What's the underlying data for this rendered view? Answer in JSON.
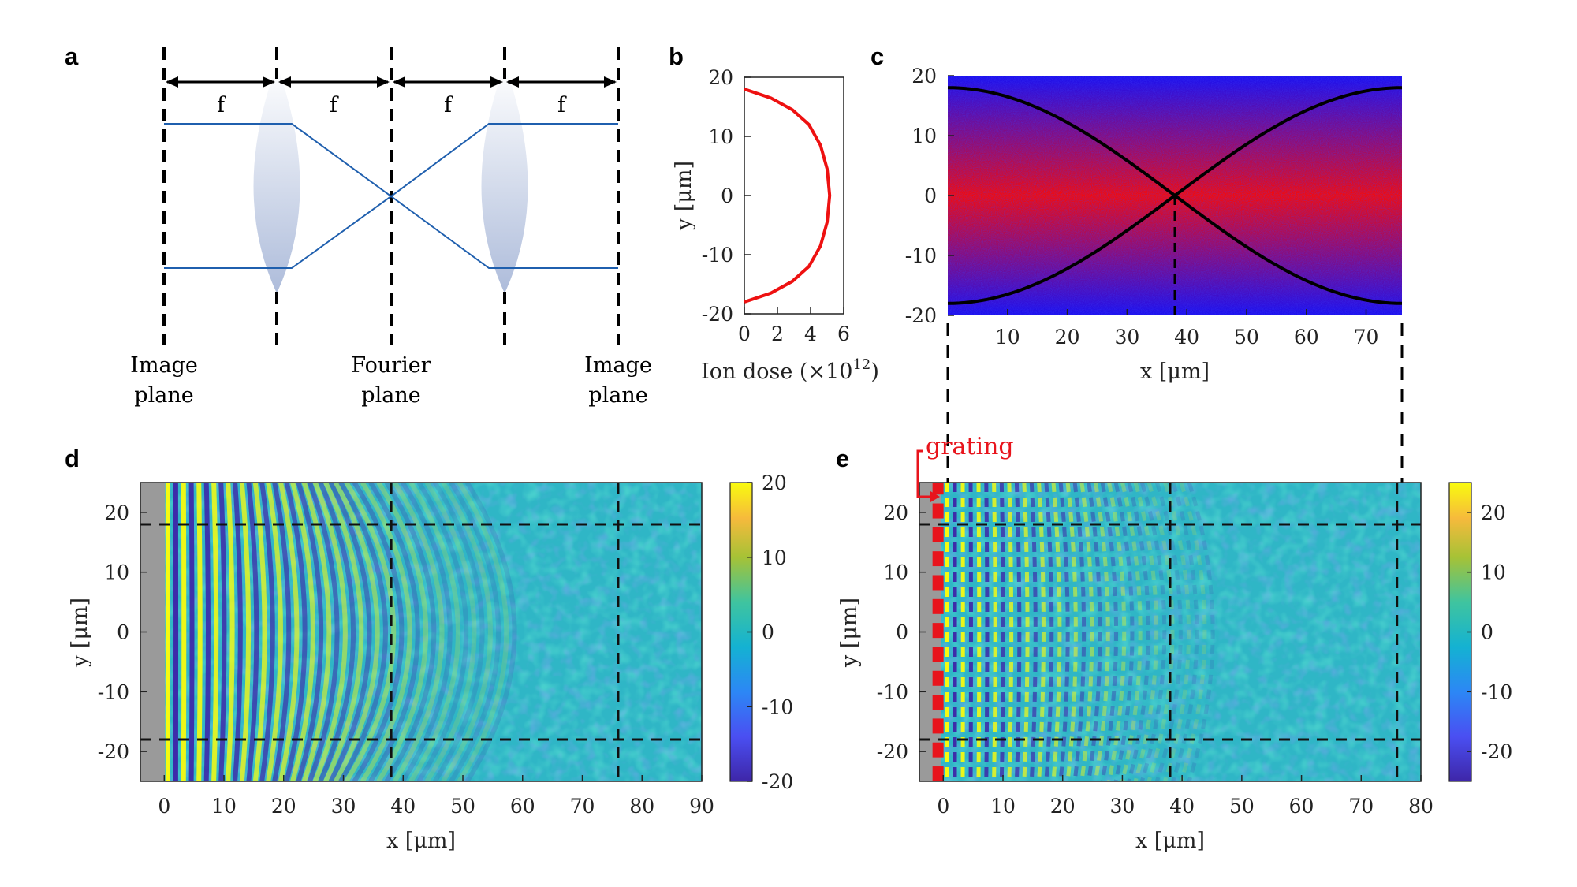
{
  "panel_labels": {
    "a": "a",
    "b": "b",
    "c": "c",
    "d": "d",
    "e": "e"
  },
  "panel_a": {
    "focal_labels": [
      "f",
      "f",
      "f",
      "f"
    ],
    "planes": [
      {
        "line1": "Image",
        "line2": "plane"
      },
      {
        "line1": "Fourier",
        "line2": "plane"
      },
      {
        "line1": "Image",
        "line2": "plane"
      }
    ]
  },
  "chart_data": [
    {
      "id": "b",
      "type": "line",
      "title": "",
      "xlabel_main": "Ion dose (",
      "xlabel_mult": "×10",
      "xlabel_exp": "12",
      "xlabel_close": ")",
      "ylabel": "y [μm]",
      "xlim": [
        0,
        6
      ],
      "ylim": [
        -20,
        20
      ],
      "xticks": [
        "0",
        "2",
        "4",
        "6"
      ],
      "yticks": [
        "20",
        "10",
        "0",
        "-10",
        "-20"
      ],
      "ytick_values": [
        20,
        10,
        0,
        -10,
        -20
      ],
      "xtick_values": [
        0,
        2,
        4,
        6
      ],
      "series": [
        {
          "name": "ion dose profile",
          "color": "#ee1111",
          "x": [
            0,
            1.6,
            2.9,
            3.9,
            4.6,
            5.0,
            5.15,
            5.0,
            4.6,
            3.9,
            2.9,
            1.6,
            0
          ],
          "y": [
            -18,
            -16.5,
            -14.5,
            -12,
            -8.5,
            -4.5,
            0,
            4.5,
            8.5,
            12,
            14.5,
            16.5,
            18
          ]
        }
      ]
    },
    {
      "id": "c",
      "type": "heatmap",
      "xlabel": "x [μm]",
      "ylabel": "",
      "xlim": [
        0,
        76
      ],
      "ylim": [
        -20,
        20
      ],
      "xticks": [
        "10",
        "20",
        "30",
        "40",
        "50",
        "60",
        "70"
      ],
      "xtick_values": [
        10,
        20,
        30,
        40,
        50,
        60,
        70
      ],
      "yticks": [
        "20",
        "10",
        "0",
        "-10",
        "-20"
      ],
      "ytick_values": [
        20,
        10,
        0,
        -10,
        -20
      ],
      "colors": {
        "low": "#0a0ff5",
        "high": "#f50a0a"
      },
      "curves": [
        {
          "name": "beam upper",
          "color": "#000000"
        },
        {
          "name": "beam lower",
          "color": "#000000"
        }
      ],
      "beam_half_width": 18,
      "focus_x": 38
    },
    {
      "id": "d",
      "type": "heatmap",
      "xlabel": "x [μm]",
      "ylabel": "y [μm]",
      "xlim": [
        -4,
        90
      ],
      "ylim": [
        -25,
        25
      ],
      "xticks": [
        "0",
        "10",
        "20",
        "30",
        "40",
        "50",
        "60",
        "70",
        "80",
        "90"
      ],
      "xtick_values": [
        0,
        10,
        20,
        30,
        40,
        50,
        60,
        70,
        80,
        90
      ],
      "yticks": [
        "20",
        "10",
        "0",
        "-10",
        "-20"
      ],
      "ytick_values": [
        20,
        10,
        0,
        -10,
        -20
      ],
      "colorbar_ticks": [
        "20",
        "10",
        "0",
        "-10",
        "-20"
      ],
      "colorbar_values": [
        20,
        10,
        0,
        -10,
        -20
      ],
      "clim": [
        -20,
        20
      ],
      "dashed_x": [
        38,
        76
      ],
      "dashed_y": [
        18,
        -18
      ],
      "colormap": "parula"
    },
    {
      "id": "e",
      "type": "heatmap",
      "xlabel": "x [μm]",
      "ylabel": "y [μm]",
      "xlim": [
        -4,
        80
      ],
      "ylim": [
        -25,
        25
      ],
      "xticks": [
        "0",
        "10",
        "20",
        "30",
        "40",
        "50",
        "60",
        "70",
        "80"
      ],
      "xtick_values": [
        0,
        10,
        20,
        30,
        40,
        50,
        60,
        70,
        80
      ],
      "yticks": [
        "20",
        "10",
        "0",
        "-10",
        "-20"
      ],
      "ytick_values": [
        20,
        10,
        0,
        -10,
        -20
      ],
      "colorbar_ticks": [
        "20",
        "10",
        "0",
        "-10",
        "-20"
      ],
      "colorbar_values": [
        20,
        10,
        0,
        -10,
        -20
      ],
      "clim": [
        -25,
        25
      ],
      "dashed_x": [
        38,
        76
      ],
      "dashed_y": [
        18,
        -18
      ],
      "colormap": "parula",
      "annotation": "grating",
      "annotation_color": "#e8141c"
    }
  ]
}
